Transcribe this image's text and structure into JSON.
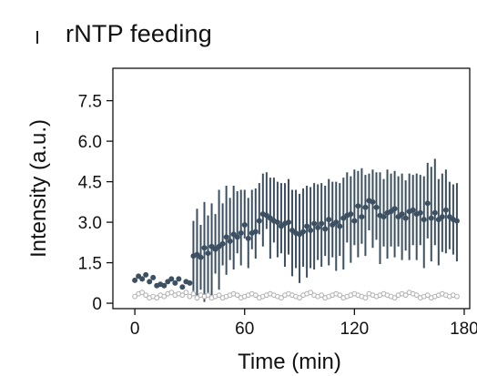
{
  "chart_data": {
    "type": "scatter",
    "title": "rNTP feeding",
    "xlabel": "Time (min)",
    "ylabel": "Intensity (a.u.)",
    "xlim": [
      -12,
      183
    ],
    "ylim": [
      -0.2,
      8.7
    ],
    "xticks": [
      0,
      60,
      120,
      180
    ],
    "yticks": [
      0,
      1.5,
      3.0,
      4.5,
      6.0,
      7.5
    ],
    "ytick_labels": [
      "0",
      "1.5",
      "3.0",
      "4.5",
      "6.0",
      "7.5"
    ],
    "grid": false,
    "colors": {
      "dark": "#3c5062",
      "light": "#b5b5b5"
    },
    "series": [
      {
        "marker": "filled",
        "color": "#3c5062",
        "x": [
          0,
          2,
          4,
          6,
          8,
          10,
          12,
          14,
          16,
          18,
          20,
          22,
          24,
          26,
          28,
          30,
          32,
          34,
          36,
          38,
          40,
          42,
          44,
          46,
          48,
          50,
          52,
          54,
          56,
          58,
          60,
          62,
          64,
          66,
          68,
          70,
          72,
          74,
          76,
          78,
          80,
          82,
          84,
          86,
          88,
          90,
          92,
          94,
          96,
          98,
          100,
          102,
          104,
          106,
          108,
          110,
          112,
          114,
          116,
          118,
          120,
          122,
          124,
          126,
          128,
          130,
          132,
          134,
          136,
          138,
          140,
          142,
          144,
          146,
          148,
          150,
          152,
          154,
          156,
          158,
          160,
          162,
          164,
          166,
          168,
          170,
          172,
          174,
          176
        ],
        "y": [
          0.85,
          1.0,
          0.9,
          1.05,
          0.8,
          0.95,
          0.65,
          0.7,
          0.65,
          0.8,
          0.9,
          0.75,
          0.9,
          0.6,
          0.8,
          0.75,
          1.75,
          1.8,
          1.7,
          2.05,
          1.85,
          2.1,
          2.0,
          2.1,
          2.2,
          2.45,
          2.3,
          2.55,
          2.45,
          2.6,
          2.9,
          2.4,
          2.6,
          2.65,
          3.05,
          3.3,
          3.25,
          3.15,
          3.05,
          3.0,
          2.85,
          2.95,
          3.0,
          2.7,
          2.6,
          2.55,
          2.65,
          2.85,
          2.7,
          2.95,
          2.8,
          2.95,
          2.75,
          3.1,
          2.9,
          3.0,
          2.85,
          3.15,
          3.25,
          3.3,
          3.05,
          3.6,
          3.2,
          3.55,
          3.8,
          3.75,
          3.55,
          3.25,
          3.2,
          3.35,
          3.4,
          3.5,
          3.2,
          3.3,
          3.15,
          3.4,
          3.45,
          3.3,
          3.35,
          3.1,
          3.7,
          3.15,
          3.35,
          3.1,
          3.2,
          3.45,
          3.2,
          3.1,
          3.05
        ],
        "err_low": [
          0,
          0,
          0,
          0,
          0,
          0,
          0,
          0,
          0,
          0,
          0,
          0,
          0,
          0,
          0,
          0,
          1.3,
          1.7,
          1.2,
          2.0,
          1.5,
          1.8,
          0.9,
          1.6,
          0.8,
          1.4,
          0.7,
          1.3,
          0.6,
          1.2,
          0.5,
          1.1,
          0.6,
          1.0,
          0.5,
          1.2,
          0.5,
          1.5,
          0.8,
          1.3,
          1.0,
          1.6,
          1.2,
          1.7,
          1.3,
          1.8,
          1.3,
          1.9,
          1.4,
          1.7,
          1.2,
          1.6,
          1.0,
          1.7,
          1.2,
          1.8,
          1.1,
          1.9,
          1.0,
          1.8,
          0.9,
          1.9,
          1.0,
          1.8,
          1.1,
          1.7,
          1.2,
          1.8,
          1.1,
          1.7,
          1.3,
          1.8,
          1.1,
          1.7,
          1.2,
          1.8,
          1.3,
          1.7,
          1.2,
          1.8,
          1.3,
          1.6,
          1.2,
          1.7,
          1.3,
          1.6,
          1.2,
          1.3,
          1.5
        ],
        "err_high": [
          0,
          0,
          0,
          0,
          0,
          0,
          0,
          0,
          0,
          0,
          0,
          0,
          0,
          0,
          0,
          0,
          1.3,
          1.7,
          1.2,
          1.7,
          1.4,
          1.6,
          1.3,
          2.1,
          1.5,
          1.9,
          1.6,
          1.8,
          1.7,
          1.6,
          1.3,
          1.5,
          1.6,
          1.6,
          1.4,
          1.5,
          1.6,
          1.5,
          1.6,
          1.5,
          1.6,
          1.5,
          1.6,
          1.5,
          1.6,
          1.5,
          1.6,
          1.5,
          1.6,
          1.5,
          1.6,
          1.5,
          1.6,
          1.5,
          1.6,
          1.5,
          1.6,
          1.5,
          1.6,
          1.4,
          1.9,
          1.3,
          1.8,
          1.2,
          1.0,
          1.2,
          1.3,
          1.6,
          1.4,
          1.6,
          1.4,
          1.4,
          1.5,
          1.5,
          1.4,
          1.4,
          1.3,
          1.5,
          1.4,
          1.6,
          1.5,
          1.9,
          2.0,
          1.5,
          1.6,
          1.5,
          1.3,
          1.3,
          1.4
        ]
      },
      {
        "marker": "open",
        "color": "#b5b5b5",
        "x": [
          0,
          2,
          4,
          6,
          8,
          10,
          12,
          14,
          16,
          18,
          20,
          22,
          24,
          26,
          28,
          30,
          32,
          34,
          36,
          38,
          40,
          42,
          44,
          46,
          48,
          50,
          52,
          54,
          56,
          58,
          60,
          62,
          64,
          66,
          68,
          70,
          72,
          74,
          76,
          78,
          80,
          82,
          84,
          86,
          88,
          90,
          92,
          94,
          96,
          98,
          100,
          102,
          104,
          106,
          108,
          110,
          112,
          114,
          116,
          118,
          120,
          122,
          124,
          126,
          128,
          130,
          132,
          134,
          136,
          138,
          140,
          142,
          144,
          146,
          148,
          150,
          152,
          154,
          156,
          158,
          160,
          162,
          164,
          166,
          168,
          170,
          172,
          174,
          176
        ],
        "y": [
          0.25,
          0.35,
          0.4,
          0.3,
          0.2,
          0.25,
          0.2,
          0.3,
          0.25,
          0.35,
          0.4,
          0.3,
          0.35,
          0.3,
          0.4,
          0.25,
          0.35,
          0.2,
          0.3,
          0.25,
          0.3,
          0.2,
          0.25,
          0.3,
          0.2,
          0.25,
          0.3,
          0.35,
          0.3,
          0.2,
          0.25,
          0.3,
          0.35,
          0.3,
          0.2,
          0.25,
          0.3,
          0.35,
          0.3,
          0.25,
          0.2,
          0.3,
          0.35,
          0.3,
          0.25,
          0.2,
          0.3,
          0.35,
          0.4,
          0.3,
          0.25,
          0.3,
          0.2,
          0.25,
          0.3,
          0.35,
          0.3,
          0.2,
          0.25,
          0.3,
          0.35,
          0.3,
          0.25,
          0.2,
          0.35,
          0.3,
          0.25,
          0.3,
          0.35,
          0.3,
          0.25,
          0.2,
          0.3,
          0.35,
          0.3,
          0.4,
          0.35,
          0.3,
          0.2,
          0.25,
          0.3,
          0.2,
          0.25,
          0.3,
          0.35,
          0.3,
          0.25,
          0.3,
          0.25
        ]
      }
    ]
  }
}
